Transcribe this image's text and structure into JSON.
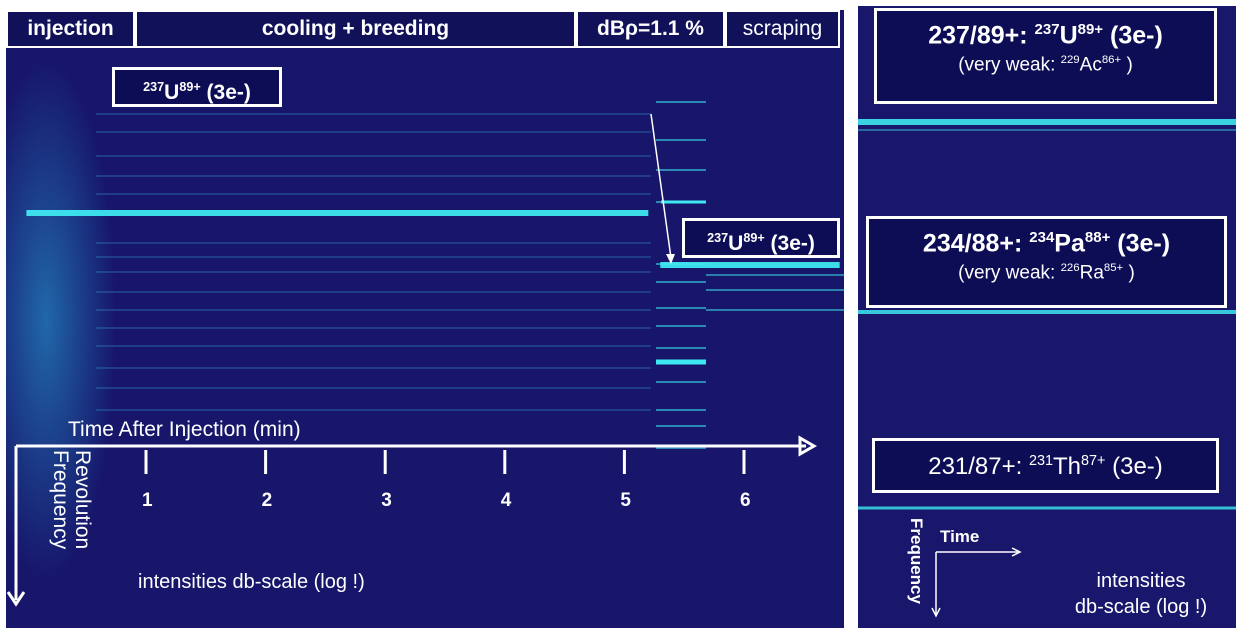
{
  "phases": [
    {
      "label": "injection"
    },
    {
      "label": "cooling + breeding"
    },
    {
      "label": "dBρ=1.1 %"
    },
    {
      "label": "scraping"
    }
  ],
  "left": {
    "label_u_initial": {
      "mass": "237",
      "el": "U",
      "charge": "89+",
      "suffix": " (3e-)"
    },
    "label_u_after": {
      "mass": "237",
      "el": "U",
      "charge": "89+",
      "suffix": " (3e-)"
    },
    "time_axis_label": "Time After Injection (min)",
    "freq_axis_label_line1": "Revolution",
    "freq_axis_label_line2": "Frequency",
    "intensity_note": "intensities db-scale (log !)"
  },
  "right": {
    "box1": {
      "prefix": "237/89+: ",
      "mass": "237",
      "el": "U",
      "charge": "89+",
      "suffix": " (3e-)",
      "weak_prefix": "(very weak: ",
      "weak_mass": "229",
      "weak_el": "Ac",
      "weak_charge": "86+",
      "weak_suffix": " )"
    },
    "box2": {
      "prefix": "234/88+: ",
      "mass": "234",
      "el": "Pa",
      "charge": "88+",
      "suffix": " (3e-)",
      "weak_prefix": "(very weak: ",
      "weak_mass": "226",
      "weak_el": "Ra",
      "weak_charge": "85+",
      "weak_suffix": " )"
    },
    "box3": {
      "prefix": "231/87+: ",
      "mass": "231",
      "el": "Th",
      "charge": "87+",
      "suffix": " (3e-)"
    },
    "freq_label": "Frequency",
    "time_label": "Time",
    "intensity_line1": "intensities",
    "intensity_line2": "db-scale (log !)"
  },
  "colors": {
    "background": "#17166b",
    "line": "#3ee8f0",
    "text": "#ffffff"
  },
  "chart_data": {
    "type": "heatmap",
    "title": "",
    "xlabel": "Time After Injection (min)",
    "ylabel": "Revolution Frequency",
    "x_ticks": [
      1,
      2,
      3,
      4,
      5,
      6
    ],
    "xlim": [
      0,
      6.8
    ],
    "note": "intensities db-scale (log !)",
    "phases": [
      "injection",
      "cooling + breeding",
      "dBρ=1.1 %",
      "scraping"
    ],
    "lines": [
      {
        "name": "237U89+ (3e-)",
        "t_start": 0.0,
        "t_end": 5.2,
        "strength": "strong"
      },
      {
        "name": "237U89+ (3e-)",
        "t_start": 5.3,
        "t_end": 6.8,
        "strength": "strong"
      }
    ]
  }
}
